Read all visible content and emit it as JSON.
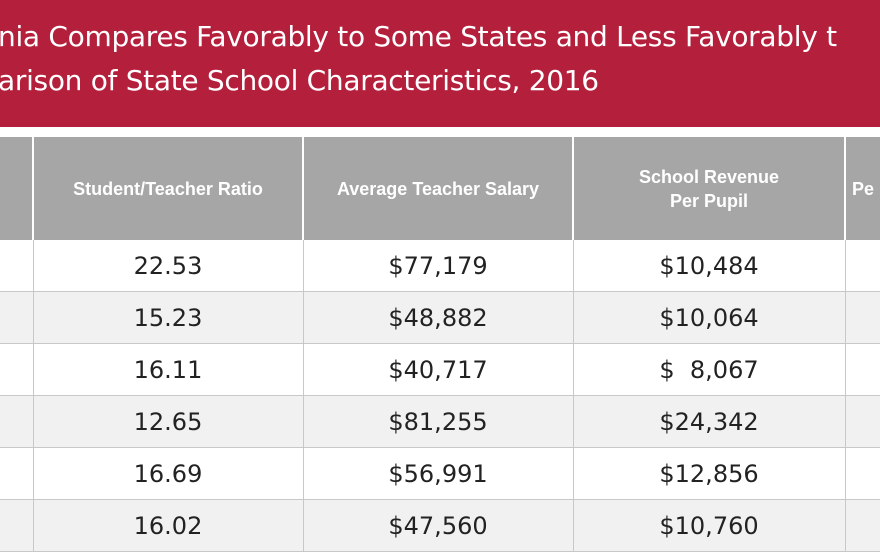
{
  "banner": {
    "line1": "nia Compares Favorably to Some States and Less Favorably t",
    "line2": "arison of State School Characteristics, 2016",
    "color": "#b41f3c"
  },
  "table": {
    "headers": [
      "",
      "Student/Teacher Ratio",
      "Average Teacher Salary",
      "School Revenue\nPer Pupil",
      "Pe"
    ],
    "rows": [
      {
        "ratio": "22.53",
        "salary": "$77,179",
        "revenue": "$10,484"
      },
      {
        "ratio": "15.23",
        "salary": "$48,882",
        "revenue": "$10,064"
      },
      {
        "ratio": "16.11",
        "salary": "$40,717",
        "revenue": "$  8,067"
      },
      {
        "ratio": "12.65",
        "salary": "$81,255",
        "revenue": "$24,342"
      },
      {
        "ratio": "16.69",
        "salary": "$56,991",
        "revenue": "$12,856"
      },
      {
        "ratio": "16.02",
        "salary": "$47,560",
        "revenue": "$10,760"
      }
    ]
  }
}
